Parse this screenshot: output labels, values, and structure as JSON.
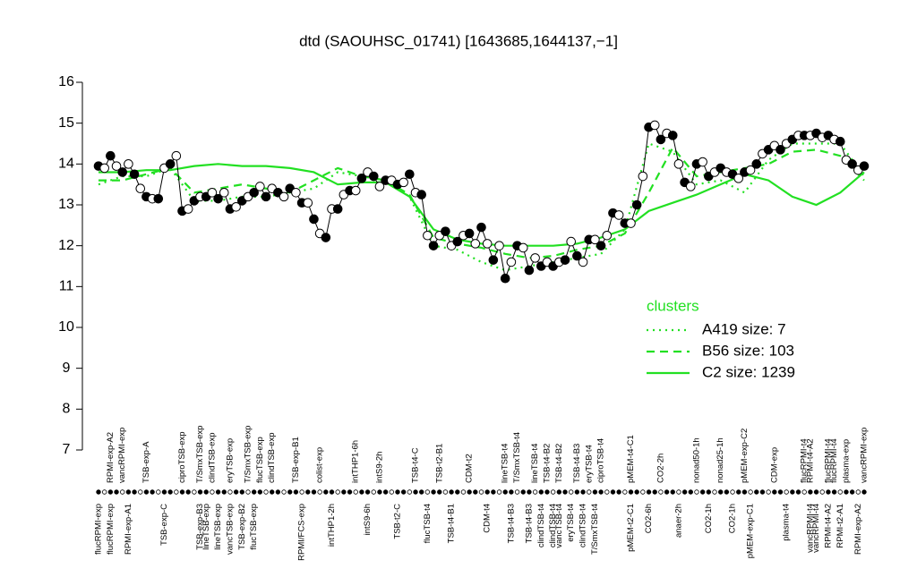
{
  "chart_data": {
    "type": "line",
    "title": "dtd (SAOUHSC_01741) [1643685,1644137,−1]",
    "ylim": [
      7,
      16
    ],
    "yticks": [
      7,
      8,
      9,
      10,
      11,
      12,
      13,
      14,
      15,
      16
    ],
    "samples": {
      "values": [
        13.95,
        13.9,
        14.2,
        13.95,
        13.8,
        14.0,
        13.75,
        13.4,
        13.2,
        13.15,
        13.15,
        13.9,
        14.0,
        14.2,
        12.85,
        12.9,
        13.1,
        13.2,
        13.2,
        13.3,
        13.15,
        13.3,
        12.9,
        12.95,
        13.1,
        13.2,
        13.3,
        13.45,
        13.2,
        13.4,
        13.3,
        13.2,
        13.4,
        13.3,
        13.05,
        13.05,
        12.65,
        12.3,
        12.2,
        12.9,
        12.9,
        13.25,
        13.35,
        13.35,
        13.65,
        13.8,
        13.7,
        13.45,
        13.6,
        13.6,
        13.5,
        13.55,
        13.75,
        13.3,
        13.25,
        12.25,
        12.0,
        12.25,
        12.35,
        12.0,
        12.1,
        12.25,
        12.3,
        12.05,
        12.45,
        12.05,
        11.65,
        12.0,
        11.2,
        11.6,
        12.0,
        11.95,
        11.4,
        11.7,
        11.5,
        11.6,
        11.5,
        11.6,
        11.65,
        12.1,
        11.75,
        11.6,
        12.15,
        12.15,
        12.0,
        12.25,
        12.8,
        12.75,
        12.55,
        12.55,
        13.0,
        13.7,
        14.9,
        14.95,
        14.6,
        14.75,
        14.7,
        14.0,
        13.55,
        13.45,
        14.0,
        14.05,
        13.7,
        13.8,
        13.9,
        13.8,
        13.75,
        13.65,
        13.8,
        13.85,
        14.0,
        14.25,
        14.35,
        14.45,
        14.35,
        14.5,
        14.6,
        14.7,
        14.7,
        14.7,
        14.75,
        14.65,
        14.7,
        14.6,
        14.55,
        14.1,
        14.0,
        13.85,
        13.95
      ],
      "top_labels": [
        null,
        null,
        "RPMI-exp-A2",
        null,
        "vancRPMI-exp",
        null,
        null,
        null,
        "TSB-exp-A",
        null,
        null,
        null,
        null,
        null,
        "ciproTSB-exp",
        null,
        null,
        "T/SmxTSB-exp",
        null,
        "clindTSB-exp",
        null,
        null,
        "eryTSB-exp",
        null,
        null,
        "T/SmxTSB-exp",
        null,
        "flucTSB-exp",
        null,
        "clindTSB-exp",
        null,
        null,
        null,
        "TSB-exp-B1",
        null,
        null,
        null,
        "colist-exp",
        null,
        null,
        null,
        null,
        null,
        "intTHP1-6h",
        null,
        null,
        null,
        "intS9-2h",
        null,
        null,
        null,
        null,
        null,
        "TSB-t4-C",
        null,
        null,
        null,
        "TSB-t2-B1",
        null,
        null,
        null,
        null,
        "CDM-t2",
        null,
        null,
        null,
        null,
        null,
        "lineTSB-t4",
        null,
        "T/SmxTSB-t4",
        null,
        null,
        "lineTSB-t4",
        null,
        "TSB-t4-B2",
        null,
        "TSB-t4-B2",
        null,
        null,
        "TSB-t4-B3",
        null,
        "eryTSB-t4",
        null,
        "ciproTSB-t4",
        null,
        null,
        null,
        null,
        "pMEM-t4-C1",
        null,
        null,
        null,
        null,
        "CO2-2h",
        null,
        null,
        null,
        null,
        null,
        "nonad50-1h",
        null,
        null,
        null,
        "nonad25-1h",
        null,
        null,
        null,
        "pMEM-exp-C2",
        null,
        null,
        null,
        null,
        "CDM-exp",
        null,
        null,
        null,
        null,
        "flucRPMI-t4",
        "RPMI-t4-A2",
        null,
        null,
        "flucRPMI-t4",
        "flucRPMI-t4",
        null,
        "plasma-exp",
        null,
        null,
        "vancRPMI-exp"
      ],
      "bottom_labels": [
        "flucRPMI-exp",
        null,
        "flucRPMI-exp",
        null,
        null,
        "RPMI-exp-A1",
        null,
        null,
        null,
        null,
        null,
        "TSB-exp-C",
        null,
        null,
        null,
        null,
        null,
        "TSB-exp-B3",
        "lineTSB-exp",
        null,
        "lineTSB-exp",
        null,
        "vancTSB-exp",
        null,
        "TSB-exp-B2",
        null,
        "flucTSB-exp",
        null,
        null,
        null,
        null,
        null,
        null,
        null,
        "RPMI/FCS-exp",
        null,
        null,
        null,
        null,
        "intTHP1-2h",
        null,
        null,
        null,
        null,
        null,
        "intS9-6h",
        null,
        null,
        null,
        null,
        "TSB-t2-C",
        null,
        null,
        null,
        null,
        "flucTSB-t4",
        null,
        null,
        null,
        "TSB-t4-B1",
        null,
        null,
        null,
        null,
        null,
        "CDM-t4",
        null,
        null,
        null,
        "TSB-t4-B3",
        null,
        null,
        "TSB-t4-B3",
        null,
        "clindTSB-t4",
        null,
        "clindTSB-t4",
        "vancTSB-t4",
        null,
        "eryTSB-t4",
        null,
        "clindTSB-t4",
        null,
        "T/SmxTSB-t4",
        null,
        null,
        null,
        null,
        null,
        "pMEM-t2-C1",
        null,
        null,
        "CO2-6h",
        null,
        null,
        null,
        null,
        "anaer-2h",
        null,
        null,
        null,
        null,
        "CO2-1h",
        null,
        null,
        null,
        "CO2-1h",
        null,
        null,
        "pMEM-exp-C1",
        null,
        null,
        null,
        null,
        null,
        "plasma-t4",
        null,
        null,
        null,
        "vancRPMI-t4",
        "vancRPMI-t4",
        null,
        "RPMI-t4-A2",
        null,
        "RPMI-t2-A1",
        null,
        null,
        "RPMI-exp-A2",
        null
      ]
    },
    "clusters": {
      "title": "clusters",
      "color": "#22e022",
      "series": [
        {
          "name": "A419 size: 7",
          "style": "dotted",
          "values": [
            13.5,
            13.7,
            13.7,
            13.9,
            13.1,
            13.1,
            13.2,
            13.2,
            13.3,
            13.4,
            13.8,
            13.7,
            13.6,
            13.2,
            12.0,
            11.9,
            11.6,
            11.4,
            11.5,
            11.6,
            11.7,
            11.8,
            12.4,
            14.5,
            14.3,
            13.5,
            13.6,
            13.3,
            14.1,
            14.5,
            14.5,
            14.5,
            13.7
          ]
        },
        {
          "name": "B56 size: 103",
          "style": "dashed",
          "values": [
            13.6,
            13.6,
            13.75,
            13.9,
            13.3,
            13.4,
            13.5,
            13.4,
            13.3,
            13.6,
            13.9,
            13.7,
            13.6,
            13.25,
            12.2,
            12.05,
            11.95,
            11.8,
            11.7,
            11.75,
            11.9,
            12.0,
            12.3,
            13.3,
            14.4,
            13.7,
            13.8,
            13.9,
            14.0,
            14.3,
            14.35,
            14.2,
            13.6
          ]
        },
        {
          "name": "C2 size: 1239",
          "style": "solid",
          "values": [
            13.8,
            13.8,
            13.85,
            13.85,
            13.95,
            14.0,
            13.95,
            13.95,
            13.9,
            13.8,
            13.5,
            13.55,
            13.55,
            13.2,
            12.4,
            12.15,
            12.05,
            12.0,
            12.0,
            12.0,
            12.05,
            12.2,
            12.4,
            12.85,
            13.05,
            13.25,
            13.5,
            13.75,
            13.6,
            13.2,
            13.0,
            13.3,
            13.8
          ]
        }
      ]
    }
  }
}
